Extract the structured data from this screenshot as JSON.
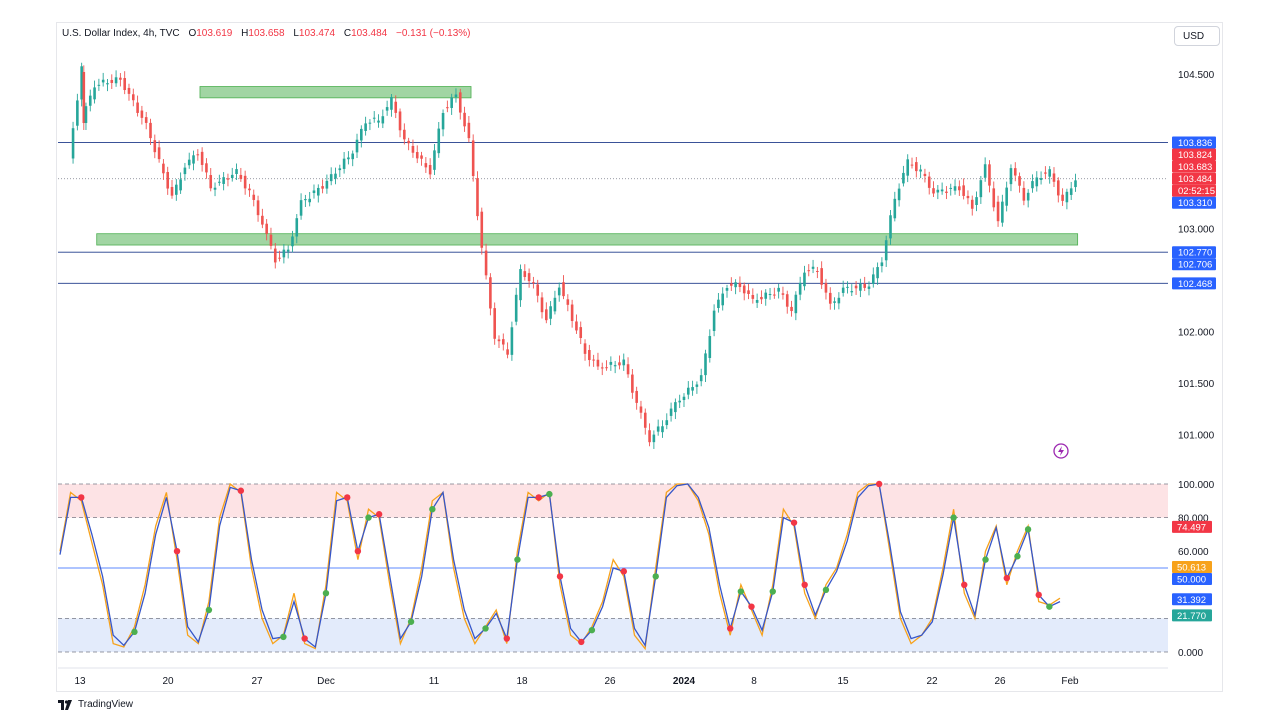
{
  "header": {
    "symbol": "U.S. Dollar Index, 4h, TVC",
    "open_label": "O",
    "open": "103.619",
    "high_label": "H",
    "high": "103.658",
    "low_label": "L",
    "low": "103.474",
    "close_label": "C",
    "close": "103.484",
    "change": "−0.131 (−0.13%)"
  },
  "currency_button": "USD",
  "branding": "TradingView",
  "colors": {
    "up": "#26a69a",
    "down": "#ef5350",
    "accent_blue": "#2962ff",
    "stoch_k": "#f7a21b",
    "stoch_d": "#3656c9",
    "zone_green": "#81c784",
    "zone_red": "#f8c8cc",
    "zone_blue": "#b6ccf5"
  },
  "chart_data": [
    {
      "type": "candlestick",
      "title": "U.S. Dollar Index, 4h, TVC",
      "ylim": [
        100.8,
        104.9
      ],
      "price_axis_ticks": [
        "104.500",
        "103.000",
        "102.000",
        "101.500",
        "101.000"
      ],
      "time_axis_ticks": [
        "13",
        "20",
        "27",
        "Dec",
        "11",
        "18",
        "26",
        "2024",
        "8",
        "15",
        "22",
        "26",
        "Feb"
      ],
      "price_labels": [
        {
          "text": "103.836",
          "value": 103.836,
          "kind": "blue"
        },
        {
          "text": "103.824",
          "value": 103.824,
          "kind": "red"
        },
        {
          "text": "103.683",
          "value": 103.683,
          "kind": "red"
        },
        {
          "text": "103.484",
          "value": 103.484,
          "kind": "red"
        },
        {
          "text": "02:52:15",
          "value": 103.43,
          "kind": "red"
        },
        {
          "text": "103.310",
          "value": 103.31,
          "kind": "blue"
        },
        {
          "text": "102.770",
          "value": 102.77,
          "kind": "blue"
        },
        {
          "text": "102.706",
          "value": 102.706,
          "kind": "blue"
        },
        {
          "text": "102.468",
          "value": 102.468,
          "kind": "blue"
        }
      ],
      "horizontal_lines": [
        103.836,
        102.77,
        102.468
      ],
      "support_resistance_zones": [
        {
          "low": 104.27,
          "high": 104.38,
          "x_range": [
            "Nov 23",
            "Dec 14"
          ]
        },
        {
          "low": 102.84,
          "high": 102.95,
          "x_range": [
            "Nov 15",
            "Jan 30"
          ]
        }
      ],
      "close_path": [
        {
          "x": "Nov 13",
          "y": 103.7
        },
        {
          "x": "Nov 14",
          "y": 104.55
        },
        {
          "x": "Nov 14",
          "y": 104.05
        },
        {
          "x": "Nov 15",
          "y": 104.4
        },
        {
          "x": "Nov 17",
          "y": 104.45
        },
        {
          "x": "Nov 19",
          "y": 104.0
        },
        {
          "x": "Nov 21",
          "y": 103.3
        },
        {
          "x": "Nov 22",
          "y": 103.6
        },
        {
          "x": "Nov 23",
          "y": 103.75
        },
        {
          "x": "Nov 24",
          "y": 103.4
        },
        {
          "x": "Nov 26",
          "y": 103.55
        },
        {
          "x": "Nov 27",
          "y": 103.35
        },
        {
          "x": "Nov 28",
          "y": 103.05
        },
        {
          "x": "Nov 29",
          "y": 102.7
        },
        {
          "x": "Nov 30",
          "y": 102.8
        },
        {
          "x": "Dec 1",
          "y": 103.25
        },
        {
          "x": "Dec 3",
          "y": 103.45
        },
        {
          "x": "Dec 5",
          "y": 103.75
        },
        {
          "x": "Dec 6",
          "y": 104.05
        },
        {
          "x": "Dec 7",
          "y": 104.05
        },
        {
          "x": "Dec 8",
          "y": 104.25
        },
        {
          "x": "Dec 9",
          "y": 103.85
        },
        {
          "x": "Dec 11",
          "y": 103.55
        },
        {
          "x": "Dec 12",
          "y": 104.15
        },
        {
          "x": "Dec 13",
          "y": 104.3
        },
        {
          "x": "Dec 14",
          "y": 103.85
        },
        {
          "x": "Dec 15",
          "y": 102.8
        },
        {
          "x": "Dec 16",
          "y": 101.95
        },
        {
          "x": "Dec 17",
          "y": 101.8
        },
        {
          "x": "Dec 18",
          "y": 102.6
        },
        {
          "x": "Dec 19",
          "y": 102.45
        },
        {
          "x": "Dec 20",
          "y": 102.1
        },
        {
          "x": "Dec 21",
          "y": 102.45
        },
        {
          "x": "Dec 23",
          "y": 101.8
        },
        {
          "x": "Dec 24",
          "y": 101.65
        },
        {
          "x": "Dec 26",
          "y": 101.7
        },
        {
          "x": "Dec 27",
          "y": 101.3
        },
        {
          "x": "Dec 28",
          "y": 100.95
        },
        {
          "x": "Dec 29",
          "y": 101.1
        },
        {
          "x": "Dec 30",
          "y": 101.3
        },
        {
          "x": "Jan 1",
          "y": 101.55
        },
        {
          "x": "Jan 2",
          "y": 102.2
        },
        {
          "x": "Jan 3",
          "y": 102.45
        },
        {
          "x": "Jan 4",
          "y": 102.45
        },
        {
          "x": "Jan 5",
          "y": 102.3
        },
        {
          "x": "Jan 7",
          "y": 102.4
        },
        {
          "x": "Jan 8",
          "y": 102.2
        },
        {
          "x": "Jan 9",
          "y": 102.6
        },
        {
          "x": "Jan 10",
          "y": 102.6
        },
        {
          "x": "Jan 11",
          "y": 102.25
        },
        {
          "x": "Jan 12",
          "y": 102.4
        },
        {
          "x": "Jan 14",
          "y": 102.45
        },
        {
          "x": "Jan 15",
          "y": 102.7
        },
        {
          "x": "Jan 16",
          "y": 103.3
        },
        {
          "x": "Jan 17",
          "y": 103.65
        },
        {
          "x": "Jan 18",
          "y": 103.55
        },
        {
          "x": "Jan 19",
          "y": 103.35
        },
        {
          "x": "Jan 21",
          "y": 103.4
        },
        {
          "x": "Jan 22",
          "y": 103.2
        },
        {
          "x": "Jan 23",
          "y": 103.6
        },
        {
          "x": "Jan 24",
          "y": 103.05
        },
        {
          "x": "Jan 25",
          "y": 103.6
        },
        {
          "x": "Jan 26",
          "y": 103.3
        },
        {
          "x": "Jan 27",
          "y": 103.5
        },
        {
          "x": "Jan 28",
          "y": 103.55
        },
        {
          "x": "Jan 29",
          "y": 103.25
        },
        {
          "x": "Jan 30",
          "y": 103.484
        }
      ]
    },
    {
      "type": "line",
      "title": "",
      "ylim": [
        0,
        100
      ],
      "axis_ticks": [
        "100.000",
        "80.000",
        "60.000",
        "0.000"
      ],
      "levels": [
        100,
        80,
        50,
        20,
        0
      ],
      "value_labels": [
        {
          "text": "74.497",
          "value": 74.497,
          "kind": "red"
        },
        {
          "text": "50.613",
          "value": 50.613,
          "kind": "orange"
        },
        {
          "text": "50.000",
          "value": 50.0,
          "kind": "blue"
        },
        {
          "text": "31.392",
          "value": 31.392,
          "kind": "blue"
        },
        {
          "text": "21.770",
          "value": 21.77,
          "kind": "green"
        }
      ],
      "series": [
        {
          "values": [
            60,
            95,
            90,
            65,
            40,
            5,
            3,
            15,
            40,
            75,
            95,
            55,
            10,
            5,
            30,
            80,
            100,
            95,
            50,
            20,
            5,
            10,
            35,
            5,
            2,
            40,
            95,
            90,
            55,
            85,
            80,
            40,
            5,
            20,
            50,
            90,
            95,
            50,
            20,
            5,
            15,
            25,
            5,
            60,
            95,
            90,
            95,
            40,
            10,
            5,
            15,
            30,
            55,
            45,
            10,
            2,
            50,
            95,
            100,
            100,
            90,
            70,
            35,
            10,
            40,
            25,
            10,
            40,
            85,
            75,
            35,
            20,
            40,
            50,
            70,
            95,
            100,
            100,
            60,
            20,
            5,
            10,
            20,
            50,
            85,
            35,
            20,
            60,
            75,
            40,
            60,
            75,
            30,
            28,
            32
          ]
        },
        {
          "values": [
            58,
            92,
            92,
            70,
            45,
            10,
            4,
            12,
            35,
            70,
            92,
            60,
            15,
            6,
            25,
            75,
            98,
            96,
            55,
            25,
            8,
            9,
            30,
            8,
            3,
            35,
            90,
            92,
            60,
            80,
            82,
            45,
            8,
            18,
            45,
            85,
            95,
            55,
            25,
            8,
            14,
            23,
            8,
            55,
            92,
            92,
            94,
            45,
            14,
            6,
            13,
            27,
            50,
            48,
            14,
            4,
            45,
            92,
            99,
            100,
            92,
            74,
            40,
            14,
            36,
            27,
            13,
            36,
            80,
            77,
            40,
            22,
            37,
            48,
            66,
            92,
            99,
            100,
            64,
            24,
            8,
            10,
            18,
            46,
            80,
            40,
            22,
            55,
            74,
            44,
            57,
            73,
            34,
            27,
            30
          ]
        }
      ]
    }
  ]
}
